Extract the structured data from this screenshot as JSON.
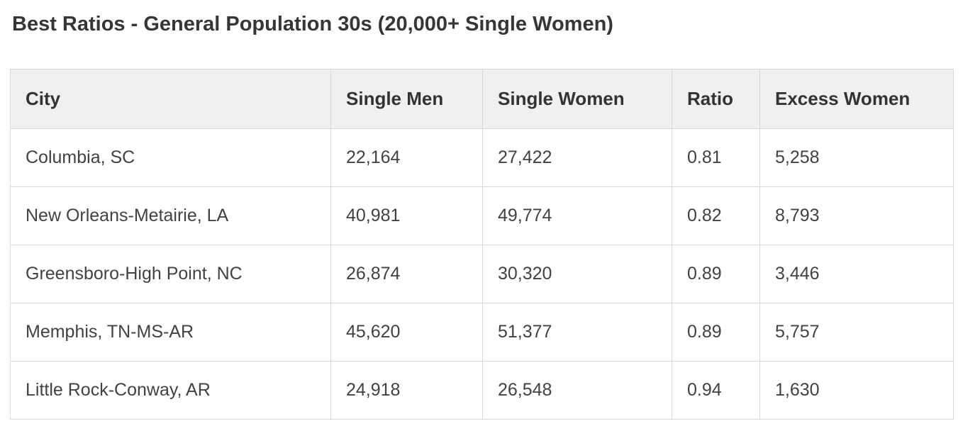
{
  "page": {
    "title": "Best Ratios - General Population 30s (20,000+ Single Women)"
  },
  "table": {
    "columns": [
      "City",
      "Single Men",
      "Single Women",
      "Ratio",
      "Excess Women"
    ],
    "rows": [
      [
        "Columbia, SC",
        "22,164",
        "27,422",
        "0.81",
        "5,258"
      ],
      [
        "New Orleans-Metairie, LA",
        "40,981",
        "49,774",
        "0.82",
        "8,793"
      ],
      [
        "Greensboro-High Point, NC",
        "26,874",
        "30,320",
        "0.89",
        "3,446"
      ],
      [
        "Memphis, TN-MS-AR",
        "45,620",
        "51,377",
        "0.89",
        "5,757"
      ],
      [
        "Little Rock-Conway, AR",
        "24,918",
        "26,548",
        "0.94",
        "1,630"
      ]
    ]
  },
  "colors": {
    "header_bg": "#f0f0f0",
    "border": "#d9d9d9",
    "title_text": "#363636",
    "cell_text": "#424242"
  },
  "chart_data": {
    "type": "table",
    "title": "Best Ratios - General Population 30s (20,000+ Single Women)",
    "columns": [
      "City",
      "Single Men",
      "Single Women",
      "Ratio",
      "Excess Women"
    ],
    "rows": [
      {
        "city": "Columbia, SC",
        "single_men": 22164,
        "single_women": 27422,
        "ratio": 0.81,
        "excess_women": 5258
      },
      {
        "city": "New Orleans-Metairie, LA",
        "single_men": 40981,
        "single_women": 49774,
        "ratio": 0.82,
        "excess_women": 8793
      },
      {
        "city": "Greensboro-High Point, NC",
        "single_men": 26874,
        "single_women": 30320,
        "ratio": 0.89,
        "excess_women": 3446
      },
      {
        "city": "Memphis, TN-MS-AR",
        "single_men": 45620,
        "single_women": 51377,
        "ratio": 0.89,
        "excess_women": 5757
      },
      {
        "city": "Little Rock-Conway, AR",
        "single_men": 24918,
        "single_women": 26548,
        "ratio": 0.94,
        "excess_women": 1630
      }
    ]
  }
}
